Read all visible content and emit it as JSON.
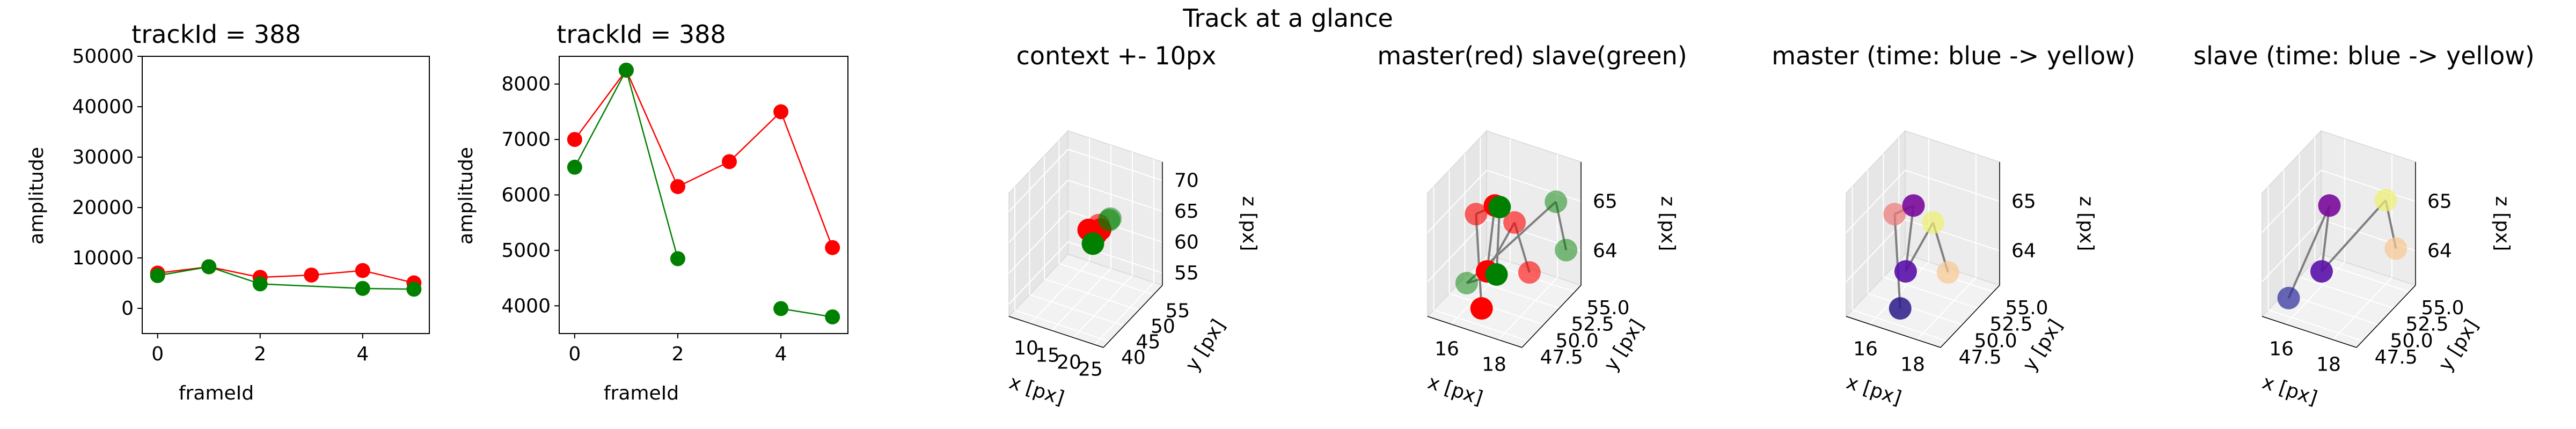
{
  "suptitle": "Track at a glance",
  "chart_data": [
    {
      "type": "line",
      "title": "trackId = 388",
      "xlabel": "frameId",
      "ylabel": "amplitude",
      "xlim": [
        -0.3,
        5.3
      ],
      "ylim": [
        -5000,
        50000
      ],
      "xticks": [
        "0",
        "2",
        "4"
      ],
      "yticks": [
        "0",
        "10000",
        "20000",
        "30000",
        "40000",
        "50000"
      ],
      "series": [
        {
          "color": "#ff0000",
          "x": [
            0,
            1,
            2,
            3,
            4,
            5
          ],
          "values": [
            7000,
            8250,
            6150,
            6600,
            7500,
            5050
          ]
        },
        {
          "color": "#008000",
          "x": [
            0,
            1,
            2,
            4,
            5
          ],
          "values": [
            6500,
            8250,
            4850,
            3950,
            3800
          ]
        }
      ]
    },
    {
      "type": "line",
      "title": "trackId = 388",
      "xlabel": "frameId",
      "ylabel": "amplitude",
      "xlim": [
        -0.3,
        5.3
      ],
      "ylim": [
        3500,
        8500
      ],
      "xticks": [
        "0",
        "2",
        "4"
      ],
      "yticks": [
        "4000",
        "5000",
        "6000",
        "7000",
        "8000"
      ],
      "series": [
        {
          "color": "#ff0000",
          "x": [
            0,
            1,
            2,
            3,
            4,
            5
          ],
          "values": [
            7000,
            8250,
            6150,
            6600,
            7500,
            5050
          ]
        },
        {
          "color": "#008000",
          "x": [
            0,
            1,
            2
          ],
          "values": [
            6500,
            8250,
            4850
          ]
        },
        {
          "color": "#008000",
          "x": [
            4,
            5
          ],
          "values": [
            3950,
            3800
          ]
        }
      ]
    },
    {
      "type": "scatter",
      "title": "context +- 10px",
      "xlabel": "x [px]",
      "ylabel": "y [px]",
      "zlabel": "z [px]",
      "xlim": [
        5,
        27
      ],
      "ylim": [
        38,
        58
      ],
      "zlim": [
        53,
        73
      ],
      "xticks": [
        "10",
        "15",
        "20",
        "25"
      ],
      "yticks": [
        "40",
        "45",
        "50",
        "55"
      ],
      "zticks": [
        "55",
        "60",
        "65",
        "70"
      ],
      "points": [
        {
          "x": 17,
          "y": 50,
          "z": 63,
          "color": "#ff0000",
          "alpha": 1
        },
        {
          "x": 18,
          "y": 50,
          "z": 64,
          "color": "#ff0000",
          "alpha": 1
        },
        {
          "x": 16,
          "y": 49,
          "z": 64,
          "color": "#ff0000",
          "alpha": 1
        },
        {
          "x": 17,
          "y": 51,
          "z": 64,
          "color": "#ff0000",
          "alpha": 0.6
        },
        {
          "x": 16,
          "y": 50,
          "z": 63,
          "color": "#ff0000",
          "alpha": 0.6
        },
        {
          "x": 17,
          "y": 49,
          "z": 62,
          "color": "#008000",
          "alpha": 1
        },
        {
          "x": 19,
          "y": 52,
          "z": 65,
          "color": "#008000",
          "alpha": 0.5
        },
        {
          "x": 18,
          "y": 53,
          "z": 64,
          "color": "#008000",
          "alpha": 0.5
        }
      ]
    },
    {
      "type": "scatter",
      "title": "master(red) slave(green)",
      "xlabel": "x [px]",
      "ylabel": "y [px]",
      "zlabel": "z [px]",
      "xlim": [
        15,
        19
      ],
      "ylim": [
        46.5,
        56
      ],
      "zlim": [
        63.3,
        65.8
      ],
      "xticks": [
        "16",
        "18"
      ],
      "yticks": [
        "47.5",
        "50.0",
        "52.5",
        "55.0"
      ],
      "zticks": [
        "64",
        "65"
      ],
      "points": [
        {
          "x": 16.5,
          "y": 49.5,
          "z": 63.3,
          "color": "#ff0000",
          "alpha": 1
        },
        {
          "x": 16.0,
          "y": 50.5,
          "z": 65.0,
          "color": "#ff0000",
          "alpha": 0.6
        },
        {
          "x": 16.8,
          "y": 50.5,
          "z": 65.3,
          "color": "#ff0000",
          "alpha": 1
        },
        {
          "x": 16.6,
          "y": 50.0,
          "z": 64.0,
          "color": "#ff0000",
          "alpha": 1
        },
        {
          "x": 17.5,
          "y": 51.0,
          "z": 65.0,
          "color": "#ff0000",
          "alpha": 0.6
        },
        {
          "x": 18.0,
          "y": 51.5,
          "z": 64.0,
          "color": "#ff0000",
          "alpha": 0.6
        },
        {
          "x": 17.0,
          "y": 50.5,
          "z": 65.3,
          "color": "#008000",
          "alpha": 1
        },
        {
          "x": 17.0,
          "y": 50.0,
          "z": 64.0,
          "color": "#008000",
          "alpha": 1
        },
        {
          "x": 16.0,
          "y": 49.0,
          "z": 63.8,
          "color": "#008000",
          "alpha": 0.5
        },
        {
          "x": 18.2,
          "y": 55.0,
          "z": 65.0,
          "color": "#008000",
          "alpha": 0.5
        },
        {
          "x": 18.5,
          "y": 55.5,
          "z": 64.0,
          "color": "#008000",
          "alpha": 0.5
        }
      ]
    },
    {
      "type": "scatter",
      "title": "master (time: blue -> yellow)",
      "xlabel": "x [px]",
      "ylabel": "y [px]",
      "zlabel": "z [px]",
      "xlim": [
        15,
        19
      ],
      "ylim": [
        46.5,
        56
      ],
      "zlim": [
        63.3,
        65.8
      ],
      "xticks": [
        "16",
        "18"
      ],
      "yticks": [
        "47.5",
        "50.0",
        "52.5",
        "55.0"
      ],
      "zticks": [
        "64",
        "65"
      ],
      "points": [
        {
          "x": 16.5,
          "y": 49.5,
          "z": 63.3,
          "color": "#2a1a8a",
          "alpha": 0.85
        },
        {
          "x": 16.0,
          "y": 50.5,
          "z": 65.0,
          "color": "#ee7777",
          "alpha": 0.7
        },
        {
          "x": 16.8,
          "y": 50.5,
          "z": 65.3,
          "color": "#7a0a9a",
          "alpha": 0.9
        },
        {
          "x": 16.6,
          "y": 50.0,
          "z": 64.0,
          "color": "#5a10aa",
          "alpha": 0.9
        },
        {
          "x": 17.5,
          "y": 51.0,
          "z": 65.0,
          "color": "#f0f070",
          "alpha": 0.7
        },
        {
          "x": 18.0,
          "y": 51.5,
          "z": 64.0,
          "color": "#f8c890",
          "alpha": 0.7
        }
      ]
    },
    {
      "type": "scatter",
      "title": "slave (time: blue -> yellow)",
      "xlabel": "x [px]",
      "ylabel": "y [px]",
      "zlabel": "z [px]",
      "xlim": [
        15,
        19
      ],
      "ylim": [
        46.5,
        56
      ],
      "zlim": [
        63.3,
        65.8
      ],
      "xticks": [
        "16",
        "18"
      ],
      "yticks": [
        "47.5",
        "50.0",
        "52.5",
        "55.0"
      ],
      "zticks": [
        "64",
        "65"
      ],
      "points": [
        {
          "x": 15.6,
          "y": 48.5,
          "z": 63.5,
          "color": "#2a2a9a",
          "alpha": 0.7
        },
        {
          "x": 16.8,
          "y": 50.5,
          "z": 65.3,
          "color": "#7a0a9a",
          "alpha": 0.9
        },
        {
          "x": 16.6,
          "y": 50.0,
          "z": 64.0,
          "color": "#5a10aa",
          "alpha": 0.9
        },
        {
          "x": 18.0,
          "y": 55.0,
          "z": 65.0,
          "color": "#f0f070",
          "alpha": 0.7
        },
        {
          "x": 18.3,
          "y": 55.5,
          "z": 64.0,
          "color": "#f8c890",
          "alpha": 0.7
        }
      ]
    }
  ]
}
